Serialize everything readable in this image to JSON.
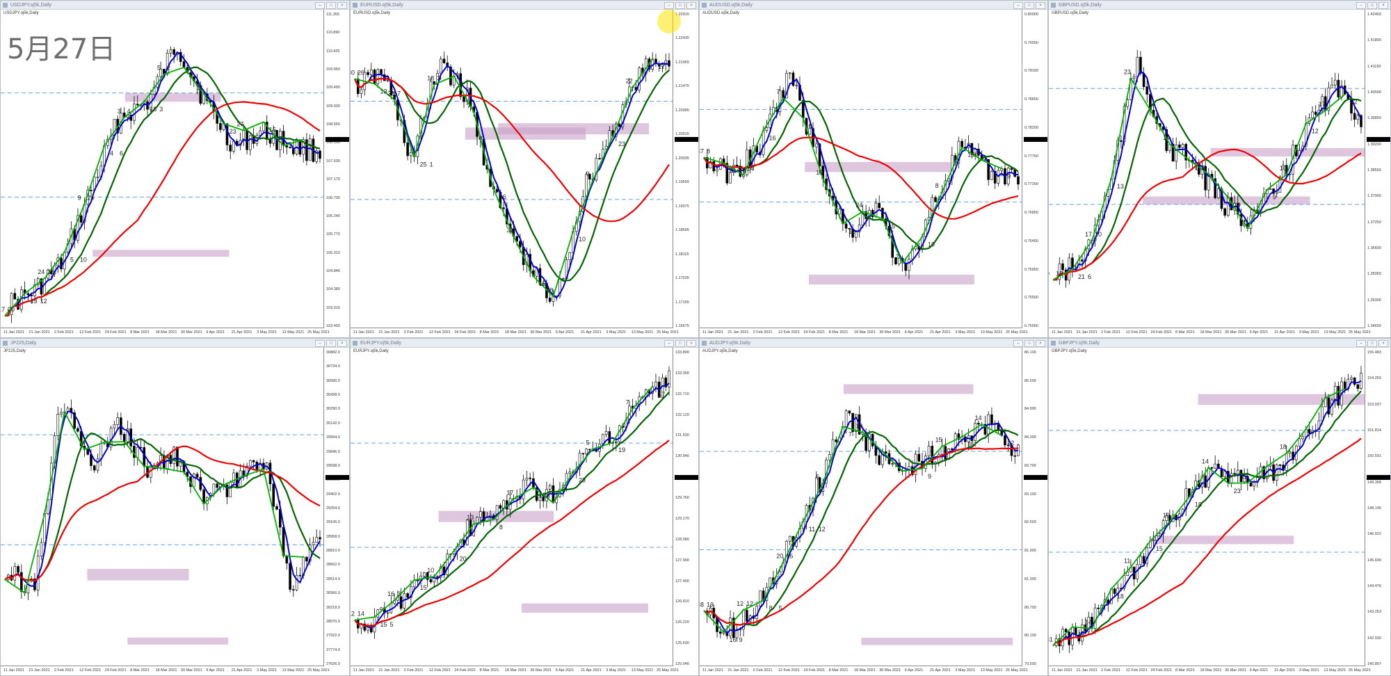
{
  "overlay": {
    "date_text": "5月27日"
  },
  "colors": {
    "bullish": "#00b000",
    "ma_short": "#0000cc",
    "ma_mid": "#006400",
    "ma_long": "#ee0000",
    "zone": "#c8a0c8",
    "level": "#64a0e6"
  },
  "panels": [
    {
      "title": "USDJPY.oj5k,Daily",
      "symbol": "USDJPY.oj5k,Daily",
      "y_ticks": [
        "111.355",
        "110.890",
        "110.425",
        "109.960",
        "109.495",
        "109.030",
        "108.565",
        "108.100",
        "107.635",
        "107.170",
        "106.705",
        "106.240",
        "105.775",
        "105.310",
        "104.845",
        "104.380",
        "103.915",
        "103.450"
      ],
      "x_ticks": [
        "11 Jan 2021",
        "21 Jan 2021",
        "2 Feb 2021",
        "12 Feb 2021",
        "24 Feb 2021",
        "8 Mar 2021",
        "18 Mar 2021",
        "30 Mar 2021",
        "9 Apr 2021",
        "21 Apr 2021",
        "3 May 2021",
        "13 May 2021",
        "25 May 2021"
      ],
      "numbers": [
        "17",
        "13",
        "24",
        "5",
        "9",
        "4",
        "3",
        "18",
        "5",
        "9",
        "11",
        "23",
        "27",
        "15",
        "2",
        "1",
        "20",
        "12",
        "15",
        "10",
        "24",
        "6",
        "4",
        "3",
        "2"
      ]
    },
    {
      "title": "EURUSD.oj5k,Daily",
      "symbol": "EURUSD.oj5k,Daily",
      "y_ticks": [
        "1.22915",
        "1.22435",
        "1.21955",
        "1.21475",
        "1.20995",
        "1.20515",
        "1.20035",
        "1.19555",
        "1.19075",
        "1.18595",
        "1.18115",
        "1.17635",
        "1.17155",
        "1.16675"
      ],
      "x_ticks": [
        "11 Jan 2021",
        "21 Jan 2021",
        "2 Feb 2021",
        "12 Feb 2021",
        "24 Feb 2021",
        "8 Mar 2021",
        "18 Mar 2021",
        "30 Mar 2021",
        "9 Apr 2021",
        "21 Apr 2021",
        "3 May 2021",
        "13 May 2021",
        "25 May 2021"
      ],
      "numbers": [
        "30",
        "13",
        "23",
        "25",
        "18",
        "8",
        "7",
        "16",
        "31",
        "15",
        "18",
        "10",
        "9",
        "23",
        "22",
        "17",
        "26",
        "5",
        "7",
        "1",
        "3"
      ]
    },
    {
      "title": "AUDUSD.oj5k,Daily",
      "symbol": "AUDUSD.oj5k,Daily",
      "y_ticks": [
        "0.80000",
        "0.79550",
        "0.79100",
        "0.78650",
        "0.78200",
        "0.77750",
        "0.77300",
        "0.76850",
        "0.76400",
        "0.75950",
        "0.75500",
        "0.75050"
      ],
      "x_ticks": [
        "11 Jan 2021",
        "21 Jan 2021",
        "2 Feb 2021",
        "12 Feb 2021",
        "24 Feb 2021",
        "8 Mar 2021",
        "18 Mar 2021",
        "30 Mar 2021",
        "9 Apr 2021",
        "21 Apr 2021",
        "3 May 2021",
        "13 May 2021",
        "25 May 2021"
      ],
      "numbers": [
        "37",
        "31",
        "26",
        "16",
        "7",
        "6",
        "19",
        "12",
        "24",
        "15",
        "7",
        "10",
        "8",
        "13",
        "6",
        "9",
        "8",
        "16",
        "14"
      ]
    },
    {
      "title": "GBPUSD.oj5k,Daily",
      "symbol": "GBPUSD.oj5k,Daily",
      "y_ticks": [
        "1.42450",
        "1.41800",
        "1.41150",
        "1.40500",
        "1.39850",
        "1.39200",
        "1.38550",
        "1.37900",
        "1.37250",
        "1.36600",
        "1.35950",
        "1.35300",
        "1.34650"
      ],
      "x_ticks": [
        "11 Jan 2021",
        "21 Jan 2021",
        "2 Feb 2021",
        "12 Feb 2021",
        "24 Feb 2021",
        "8 Mar 2021",
        "18 Mar 2021",
        "30 Mar 2021",
        "9 Apr 2021",
        "21 Apr 2021",
        "3 May 2021",
        "13 May 2021",
        "25 May 2021"
      ],
      "numbers": [
        "9",
        "21",
        "17",
        "13",
        "23",
        "7",
        "14",
        "11",
        "8",
        "19",
        "15",
        "9",
        "10",
        "12",
        "17",
        "22",
        "18",
        "6",
        "10"
      ]
    },
    {
      "title": "JP225,Daily",
      "symbol": "JP225,Daily",
      "y_ticks": [
        "30882.0",
        "30734.0",
        "30586.0",
        "30438.0",
        "30290.0",
        "30142.0",
        "29994.0",
        "29846.0",
        "29698.0",
        "29550.0",
        "29402.0",
        "29254.0",
        "29106.0",
        "28958.0",
        "28810.0",
        "28662.0",
        "28514.0",
        "28366.0",
        "28218.0",
        "28070.0",
        "27922.0",
        "27774.0",
        "27626.0"
      ],
      "x_ticks": [
        "11 Jan 2021",
        "21 Jan 2021",
        "2 Feb 2021",
        "12 Feb 2021",
        "24 Feb 2021",
        "8 Mar 2021",
        "18 Mar 2021",
        "30 Mar 2021",
        "9 Apr 2021",
        "21 Apr 2021",
        "3 May 2021",
        "13 May 2021",
        "25 May 2021"
      ],
      "numbers": []
    },
    {
      "title": "EURJPY.oj5k,Daily",
      "symbol": "EURJPY.oj5k,Daily",
      "y_ticks": [
        "133.890",
        "133.300",
        "132.710",
        "132.120",
        "131.530",
        "130.940",
        "130.350",
        "129.760",
        "129.170",
        "128.580",
        "127.990",
        "127.400",
        "126.810",
        "126.220",
        "125.630",
        "125.040"
      ],
      "x_ticks": [
        "11 Jan 2021",
        "21 Jan 2021",
        "2 Feb 2021",
        "12 Feb 2021",
        "24 Feb 2021",
        "8 Mar 2021",
        "18 Mar 2021",
        "30 Mar 2021",
        "9 Apr 2021",
        "21 Apr 2021",
        "3 May 2021",
        "13 May 2021",
        "25 May 2021"
      ],
      "numbers": [
        "12",
        "15",
        "16",
        "15",
        "10",
        "20",
        "13",
        "8",
        "17",
        "12",
        "9",
        "23",
        "5",
        "19",
        "7",
        "17",
        "14",
        "5",
        "3"
      ]
    },
    {
      "title": "AUDJPY.oj5k,Daily",
      "symbol": "AUDJPY.oj5k,Daily",
      "y_ticks": [
        "86.100",
        "85.500",
        "84.900",
        "84.300",
        "83.700",
        "83.100",
        "82.500",
        "81.900",
        "81.300",
        "80.700",
        "80.100",
        "79.500"
      ],
      "x_ticks": [
        "11 Jan 2021",
        "21 Jan 2021",
        "2 Feb 2021",
        "12 Feb 2021",
        "24 Feb 2021",
        "8 Mar 2021",
        "18 Mar 2021",
        "30 Mar 2021",
        "9 Apr 2021",
        "21 Apr 2021",
        "3 May 2021",
        "13 May 2021",
        "25 May 2021"
      ],
      "numbers": [
        "38",
        "16",
        "12",
        "8",
        "20",
        "11",
        "5",
        "7",
        "10",
        "6",
        "11",
        "9",
        "15",
        "35",
        "14",
        "22",
        "19",
        "9",
        "12",
        "5",
        "16",
        "12"
      ]
    },
    {
      "title": "GBPJPY.oj5k,Daily",
      "symbol": "GBPJPY.oj5k,Daily",
      "y_ticks": [
        "155.483",
        "154.260",
        "153.037",
        "151.814",
        "150.591",
        "149.368",
        "148.145",
        "146.922",
        "145.699",
        "144.476",
        "143.253",
        "142.030",
        "140.807"
      ],
      "x_ticks": [
        "11 Jan 2021",
        "21 Jan 2021",
        "2 Feb 2021",
        "12 Feb 2021",
        "24 Feb 2021",
        "8 Mar 2021",
        "18 Mar 2021",
        "30 Mar 2021",
        "9 Apr 2021",
        "21 Apr 2021",
        "3 May 2021",
        "13 May 2021",
        "25 May 2021"
      ],
      "numbers": [
        "31",
        "16",
        "14",
        "18",
        "11",
        "15",
        "19",
        "18",
        "14",
        "23",
        "12",
        "7",
        "18"
      ]
    }
  ]
}
